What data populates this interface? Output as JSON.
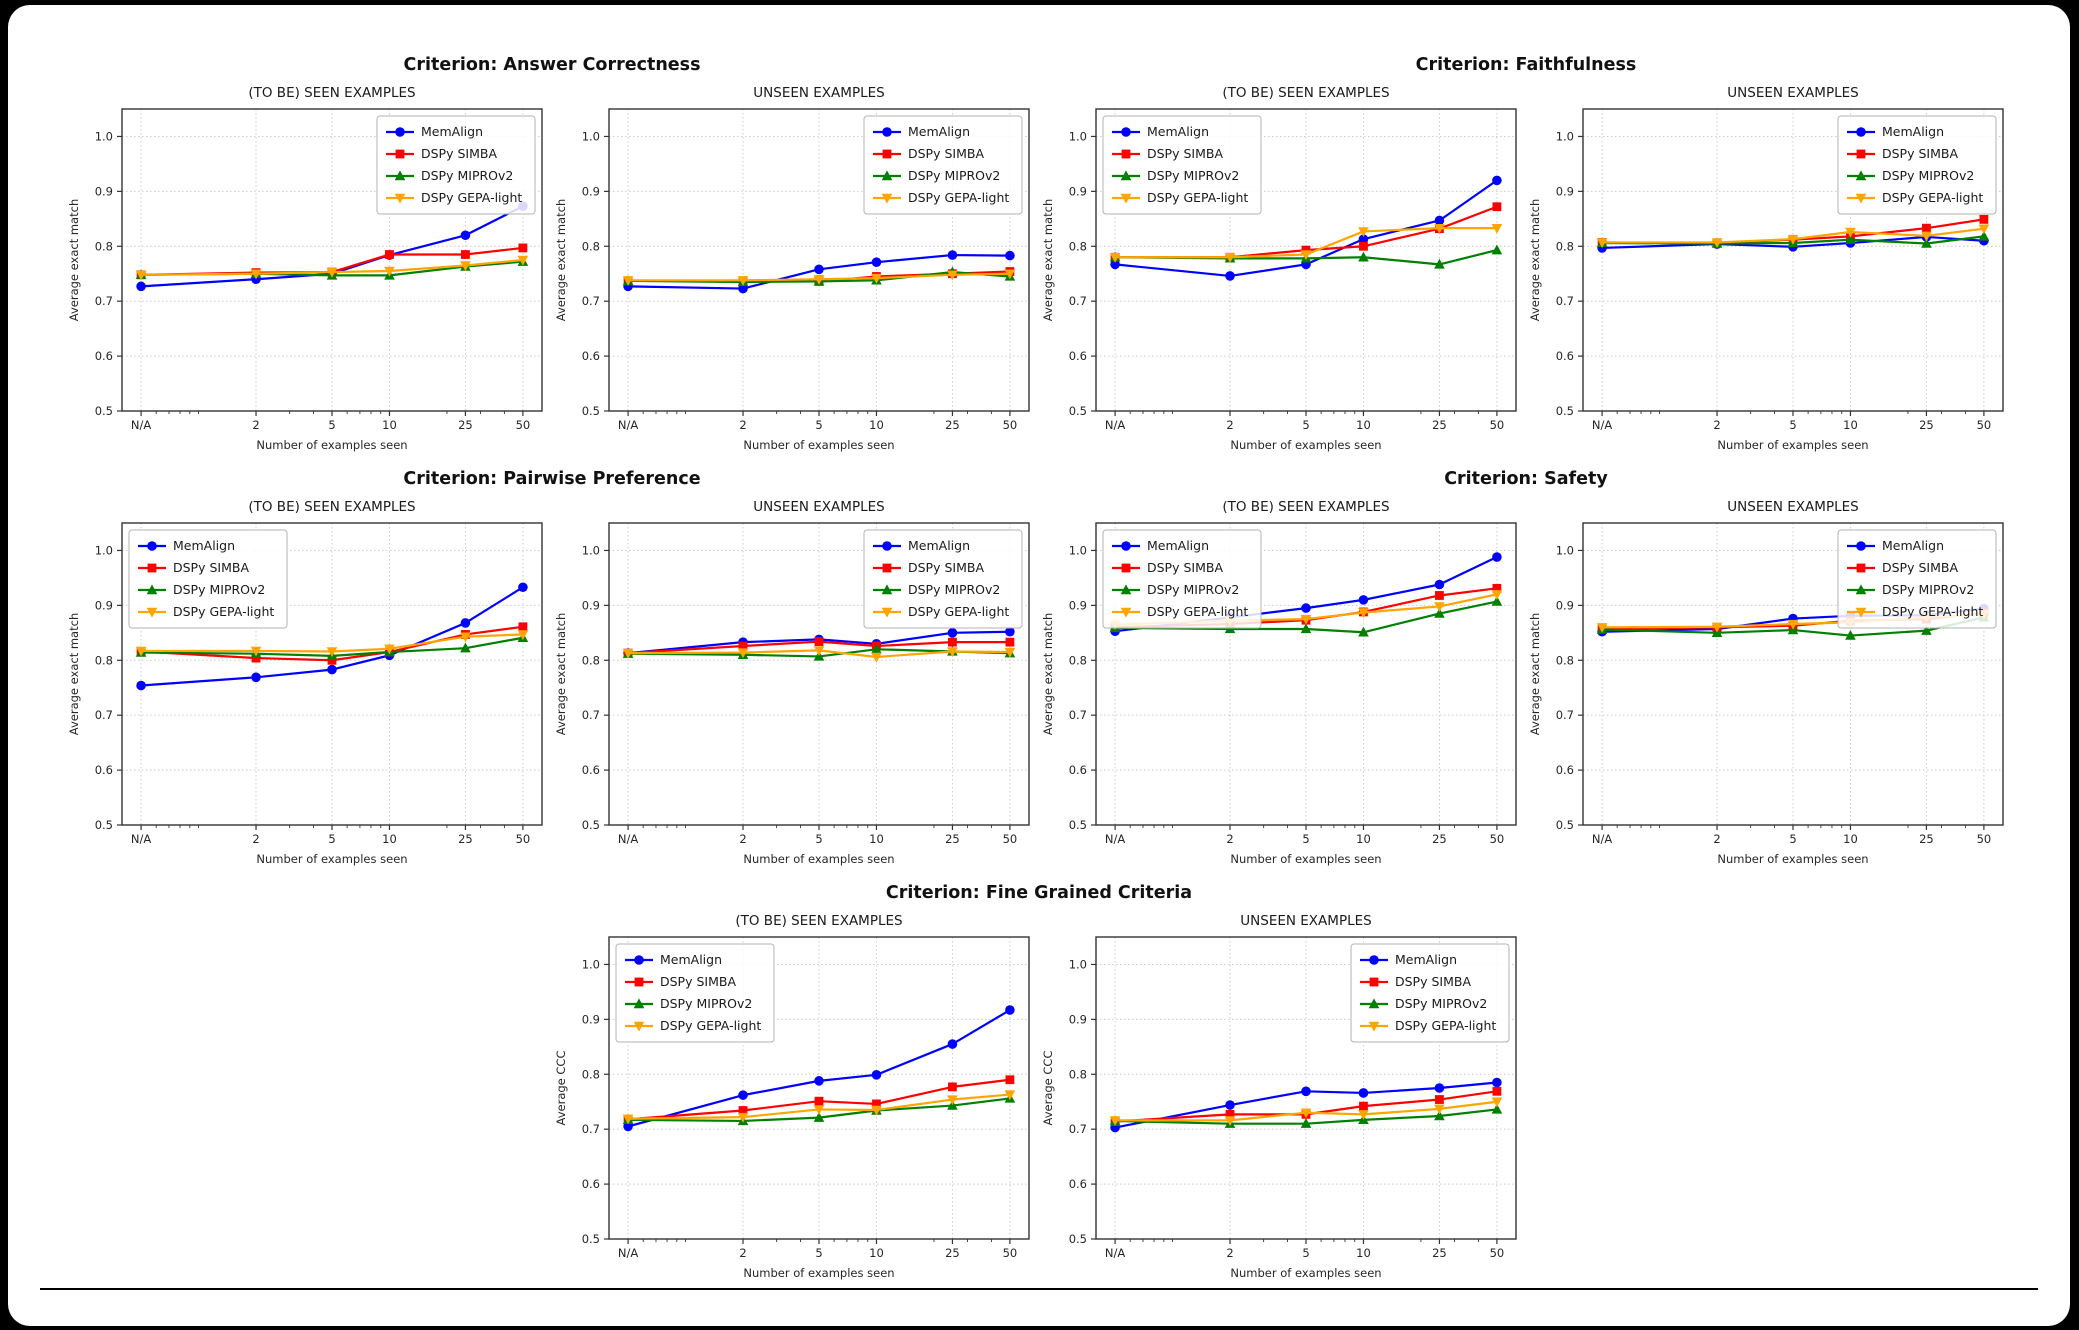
{
  "canvas": {
    "background": "#000000",
    "card_background": "#ffffff"
  },
  "series_styles": [
    {
      "name": "MemAlign",
      "color": "#0000ff",
      "marker": "circle"
    },
    {
      "name": "DSPy SIMBA",
      "color": "#ff0000",
      "marker": "square"
    },
    {
      "name": "DSPy MIPROv2",
      "color": "#008000",
      "marker": "triangle-up"
    },
    {
      "name": "DSPy GEPA-light",
      "color": "#ffa500",
      "marker": "triangle-down"
    }
  ],
  "axis_defaults": {
    "grid_color": "#cccccc",
    "spine_color": "#333333",
    "tick_label_color": "#262626",
    "minor_x_values": [
      0.6,
      0.7,
      0.8,
      0.9,
      1,
      3,
      4,
      6,
      7,
      8,
      9,
      20,
      30,
      40
    ]
  },
  "chart_data": [
    {
      "type": "line",
      "criterion": "Criterion: Answer Correctness",
      "title": "(TO BE) SEEN EXAMPLES",
      "xlabel": "Number of examples seen",
      "ylabel": "Average exact match",
      "categories": [
        "N/A",
        "2",
        "5",
        "10",
        "25",
        "50"
      ],
      "x_positions": [
        0.5,
        2,
        5,
        10,
        25,
        50
      ],
      "ylim": [
        0.5,
        1.05
      ],
      "yticks": [
        "0.5",
        "0.6",
        "0.7",
        "0.8",
        "0.9",
        "1.0"
      ],
      "grid": true,
      "legend_position": "upper-right",
      "series": [
        {
          "name": "MemAlign",
          "values": [
            0.727,
            0.74,
            0.75,
            0.784,
            0.82,
            0.873
          ]
        },
        {
          "name": "DSPy SIMBA",
          "values": [
            0.748,
            0.752,
            0.753,
            0.785,
            0.785,
            0.797
          ]
        },
        {
          "name": "DSPy MIPROv2",
          "values": [
            0.748,
            0.75,
            0.747,
            0.747,
            0.763,
            0.772
          ]
        },
        {
          "name": "DSPy GEPA-light",
          "values": [
            0.748,
            0.75,
            0.753,
            0.755,
            0.765,
            0.775
          ]
        }
      ]
    },
    {
      "type": "line",
      "criterion": "Criterion: Answer Correctness",
      "title": "UNSEEN EXAMPLES",
      "xlabel": "Number of examples seen",
      "ylabel": "Average exact match",
      "categories": [
        "N/A",
        "2",
        "5",
        "10",
        "25",
        "50"
      ],
      "x_positions": [
        0.5,
        2,
        5,
        10,
        25,
        50
      ],
      "ylim": [
        0.5,
        1.05
      ],
      "yticks": [
        "0.5",
        "0.6",
        "0.7",
        "0.8",
        "0.9",
        "1.0"
      ],
      "grid": true,
      "legend_position": "upper-right",
      "series": [
        {
          "name": "MemAlign",
          "values": [
            0.727,
            0.723,
            0.758,
            0.771,
            0.784,
            0.783
          ]
        },
        {
          "name": "DSPy SIMBA",
          "values": [
            0.737,
            0.737,
            0.736,
            0.745,
            0.75,
            0.754
          ]
        },
        {
          "name": "DSPy MIPROv2",
          "values": [
            0.737,
            0.735,
            0.736,
            0.738,
            0.753,
            0.745
          ]
        },
        {
          "name": "DSPy GEPA-light",
          "values": [
            0.738,
            0.738,
            0.74,
            0.742,
            0.748,
            0.75
          ]
        }
      ]
    },
    {
      "type": "line",
      "criterion": "Criterion: Faithfulness",
      "title": "(TO BE) SEEN EXAMPLES",
      "xlabel": "Number of examples seen",
      "ylabel": "Average exact match",
      "categories": [
        "N/A",
        "2",
        "5",
        "10",
        "25",
        "50"
      ],
      "x_positions": [
        0.5,
        2,
        5,
        10,
        25,
        50
      ],
      "ylim": [
        0.5,
        1.05
      ],
      "yticks": [
        "0.5",
        "0.6",
        "0.7",
        "0.8",
        "0.9",
        "1.0"
      ],
      "grid": true,
      "legend_position": "upper-left",
      "series": [
        {
          "name": "MemAlign",
          "values": [
            0.767,
            0.746,
            0.767,
            0.813,
            0.847,
            0.92
          ]
        },
        {
          "name": "DSPy SIMBA",
          "values": [
            0.78,
            0.78,
            0.793,
            0.8,
            0.832,
            0.872
          ]
        },
        {
          "name": "DSPy MIPROv2",
          "values": [
            0.78,
            0.778,
            0.778,
            0.78,
            0.767,
            0.793
          ]
        },
        {
          "name": "DSPy GEPA-light",
          "values": [
            0.78,
            0.78,
            0.785,
            0.827,
            0.833,
            0.833
          ]
        }
      ]
    },
    {
      "type": "line",
      "criterion": "Criterion: Faithfulness",
      "title": "UNSEEN EXAMPLES",
      "xlabel": "Number of examples seen",
      "ylabel": "Average exact match",
      "categories": [
        "N/A",
        "2",
        "5",
        "10",
        "25",
        "50"
      ],
      "x_positions": [
        0.5,
        2,
        5,
        10,
        25,
        50
      ],
      "ylim": [
        0.5,
        1.05
      ],
      "yticks": [
        "0.5",
        "0.6",
        "0.7",
        "0.8",
        "0.9",
        "1.0"
      ],
      "grid": true,
      "legend_position": "upper-right",
      "series": [
        {
          "name": "MemAlign",
          "values": [
            0.797,
            0.804,
            0.799,
            0.806,
            0.817,
            0.81
          ]
        },
        {
          "name": "DSPy SIMBA",
          "values": [
            0.807,
            0.806,
            0.812,
            0.818,
            0.833,
            0.849
          ]
        },
        {
          "name": "DSPy MIPROv2",
          "values": [
            0.806,
            0.805,
            0.806,
            0.812,
            0.805,
            0.818
          ]
        },
        {
          "name": "DSPy GEPA-light",
          "values": [
            0.807,
            0.807,
            0.813,
            0.826,
            0.819,
            0.832
          ]
        }
      ]
    },
    {
      "type": "line",
      "criterion": "Criterion: Pairwise Preference",
      "title": "(TO BE) SEEN EXAMPLES",
      "xlabel": "Number of examples seen",
      "ylabel": "Average exact match",
      "categories": [
        "N/A",
        "2",
        "5",
        "10",
        "25",
        "50"
      ],
      "x_positions": [
        0.5,
        2,
        5,
        10,
        25,
        50
      ],
      "ylim": [
        0.5,
        1.05
      ],
      "yticks": [
        "0.5",
        "0.6",
        "0.7",
        "0.8",
        "0.9",
        "1.0"
      ],
      "grid": true,
      "legend_position": "upper-left",
      "series": [
        {
          "name": "MemAlign",
          "values": [
            0.754,
            0.769,
            0.783,
            0.809,
            0.868,
            0.933
          ]
        },
        {
          "name": "DSPy SIMBA",
          "values": [
            0.816,
            0.804,
            0.8,
            0.815,
            0.847,
            0.861
          ]
        },
        {
          "name": "DSPy MIPROv2",
          "values": [
            0.814,
            0.812,
            0.808,
            0.815,
            0.822,
            0.841
          ]
        },
        {
          "name": "DSPy GEPA-light",
          "values": [
            0.817,
            0.817,
            0.816,
            0.821,
            0.843,
            0.847
          ]
        }
      ]
    },
    {
      "type": "line",
      "criterion": "Criterion: Pairwise Preference",
      "title": "UNSEEN EXAMPLES",
      "xlabel": "Number of examples seen",
      "ylabel": "Average exact match",
      "categories": [
        "N/A",
        "2",
        "5",
        "10",
        "25",
        "50"
      ],
      "x_positions": [
        0.5,
        2,
        5,
        10,
        25,
        50
      ],
      "ylim": [
        0.5,
        1.05
      ],
      "yticks": [
        "0.5",
        "0.6",
        "0.7",
        "0.8",
        "0.9",
        "1.0"
      ],
      "grid": true,
      "legend_position": "upper-right",
      "series": [
        {
          "name": "MemAlign",
          "values": [
            0.813,
            0.833,
            0.838,
            0.83,
            0.85,
            0.852
          ]
        },
        {
          "name": "DSPy SIMBA",
          "values": [
            0.813,
            0.826,
            0.834,
            0.826,
            0.833,
            0.833
          ]
        },
        {
          "name": "DSPy MIPROv2",
          "values": [
            0.812,
            0.81,
            0.807,
            0.82,
            0.816,
            0.813
          ]
        },
        {
          "name": "DSPy GEPA-light",
          "values": [
            0.813,
            0.814,
            0.818,
            0.806,
            0.816,
            0.815
          ]
        }
      ]
    },
    {
      "type": "line",
      "criterion": "Criterion: Safety",
      "title": "(TO BE) SEEN EXAMPLES",
      "xlabel": "Number of examples seen",
      "ylabel": "Average exact match",
      "categories": [
        "N/A",
        "2",
        "5",
        "10",
        "25",
        "50"
      ],
      "x_positions": [
        0.5,
        2,
        5,
        10,
        25,
        50
      ],
      "ylim": [
        0.5,
        1.05
      ],
      "yticks": [
        "0.5",
        "0.6",
        "0.7",
        "0.8",
        "0.9",
        "1.0"
      ],
      "grid": true,
      "legend_position": "upper-left",
      "series": [
        {
          "name": "MemAlign",
          "values": [
            0.853,
            0.878,
            0.895,
            0.91,
            0.938,
            0.988
          ]
        },
        {
          "name": "DSPy SIMBA",
          "values": [
            0.86,
            0.866,
            0.873,
            0.888,
            0.918,
            0.931
          ]
        },
        {
          "name": "DSPy MIPROv2",
          "values": [
            0.859,
            0.857,
            0.857,
            0.851,
            0.885,
            0.907
          ]
        },
        {
          "name": "DSPy GEPA-light",
          "values": [
            0.865,
            0.872,
            0.875,
            0.887,
            0.898,
            0.92
          ]
        }
      ]
    },
    {
      "type": "line",
      "criterion": "Criterion: Safety",
      "title": "UNSEEN EXAMPLES",
      "xlabel": "Number of examples seen",
      "ylabel": "Average exact match",
      "categories": [
        "N/A",
        "2",
        "5",
        "10",
        "25",
        "50"
      ],
      "x_positions": [
        0.5,
        2,
        5,
        10,
        25,
        50
      ],
      "ylim": [
        0.5,
        1.05
      ],
      "yticks": [
        "0.5",
        "0.6",
        "0.7",
        "0.8",
        "0.9",
        "1.0"
      ],
      "grid": true,
      "legend_position": "upper-right",
      "series": [
        {
          "name": "MemAlign",
          "values": [
            0.852,
            0.857,
            0.876,
            0.881,
            0.882,
            0.894
          ]
        },
        {
          "name": "DSPy SIMBA",
          "values": [
            0.857,
            0.86,
            0.863,
            0.872,
            0.875,
            0.886
          ]
        },
        {
          "name": "DSPy MIPROv2",
          "values": [
            0.856,
            0.85,
            0.855,
            0.845,
            0.854,
            0.878
          ]
        },
        {
          "name": "DSPy GEPA-light",
          "values": [
            0.86,
            0.861,
            0.866,
            0.869,
            0.878,
            0.884
          ]
        }
      ]
    },
    {
      "type": "line",
      "criterion": "Criterion: Fine Grained Criteria",
      "title": "(TO BE) SEEN EXAMPLES",
      "xlabel": "Number of examples seen",
      "ylabel": "Average CCC",
      "categories": [
        "N/A",
        "2",
        "5",
        "10",
        "25",
        "50"
      ],
      "x_positions": [
        0.5,
        2,
        5,
        10,
        25,
        50
      ],
      "ylim": [
        0.5,
        1.05
      ],
      "yticks": [
        "0.5",
        "0.6",
        "0.7",
        "0.8",
        "0.9",
        "1.0"
      ],
      "grid": true,
      "legend_position": "upper-left",
      "series": [
        {
          "name": "MemAlign",
          "values": [
            0.705,
            0.762,
            0.788,
            0.799,
            0.855,
            0.917
          ]
        },
        {
          "name": "DSPy SIMBA",
          "values": [
            0.718,
            0.734,
            0.751,
            0.746,
            0.777,
            0.79
          ]
        },
        {
          "name": "DSPy MIPROv2",
          "values": [
            0.717,
            0.715,
            0.721,
            0.734,
            0.743,
            0.756
          ]
        },
        {
          "name": "DSPy GEPA-light",
          "values": [
            0.719,
            0.722,
            0.736,
            0.735,
            0.754,
            0.763
          ]
        }
      ]
    },
    {
      "type": "line",
      "criterion": "Criterion: Fine Grained Criteria",
      "title": "UNSEEN EXAMPLES",
      "xlabel": "Number of examples seen",
      "ylabel": "Average CCC",
      "categories": [
        "N/A",
        "2",
        "5",
        "10",
        "25",
        "50"
      ],
      "x_positions": [
        0.5,
        2,
        5,
        10,
        25,
        50
      ],
      "ylim": [
        0.5,
        1.05
      ],
      "yticks": [
        "0.5",
        "0.6",
        "0.7",
        "0.8",
        "0.9",
        "1.0"
      ],
      "grid": true,
      "legend_position": "upper-right",
      "series": [
        {
          "name": "MemAlign",
          "values": [
            0.703,
            0.744,
            0.769,
            0.766,
            0.775,
            0.785
          ]
        },
        {
          "name": "DSPy SIMBA",
          "values": [
            0.714,
            0.727,
            0.727,
            0.742,
            0.754,
            0.769
          ]
        },
        {
          "name": "DSPy MIPROv2",
          "values": [
            0.715,
            0.71,
            0.71,
            0.717,
            0.724,
            0.736
          ]
        },
        {
          "name": "DSPy GEPA-light",
          "values": [
            0.716,
            0.716,
            0.73,
            0.727,
            0.737,
            0.75
          ]
        }
      ]
    }
  ]
}
